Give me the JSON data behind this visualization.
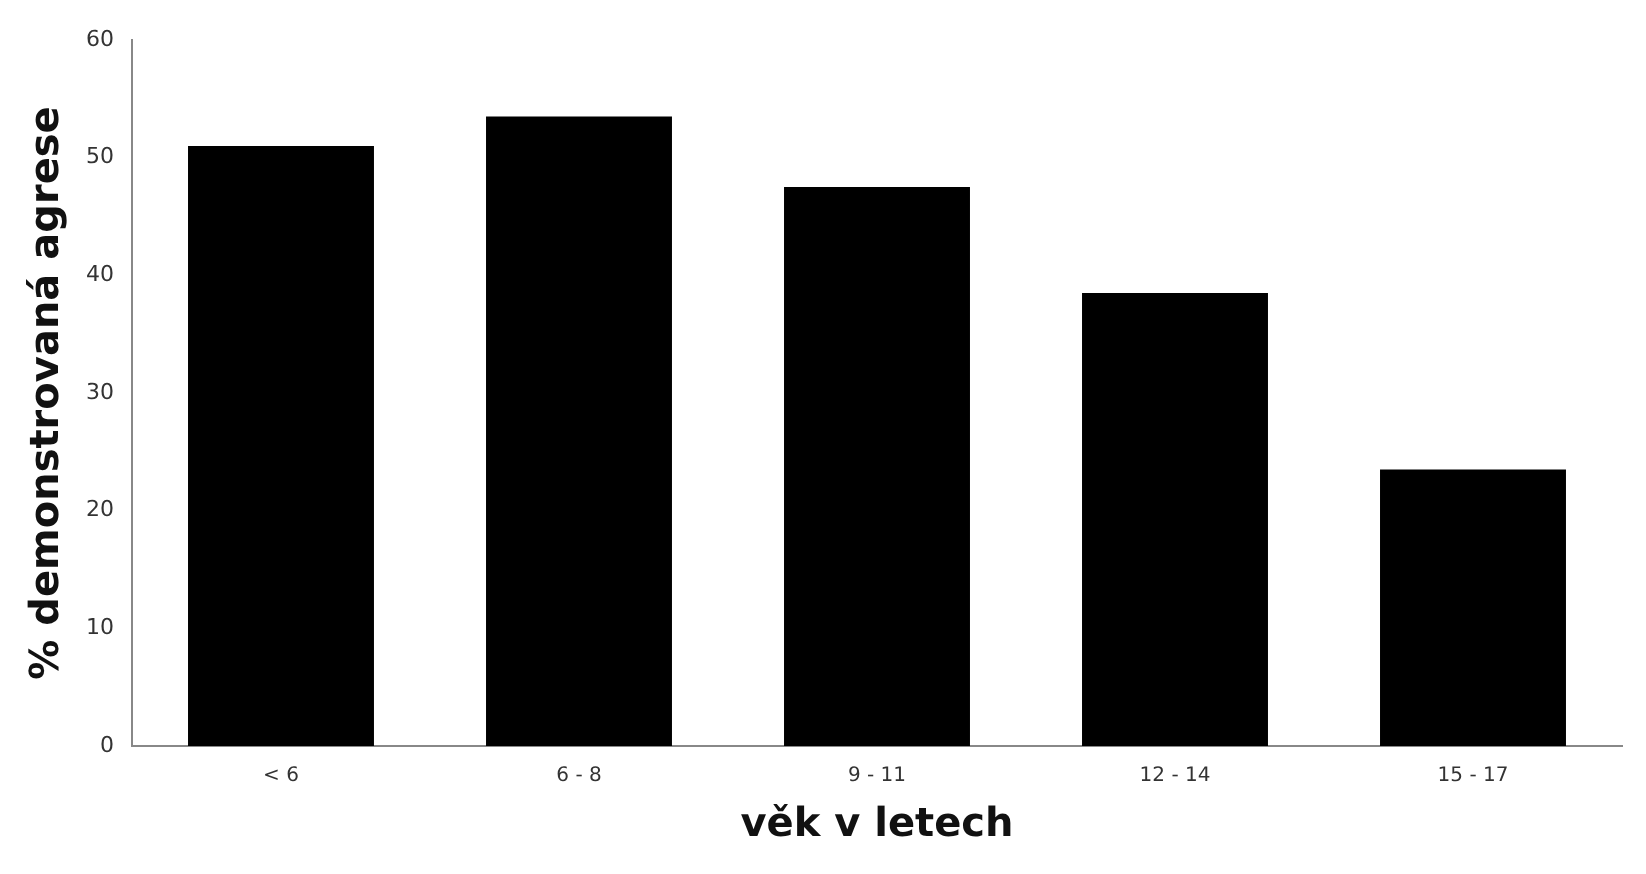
{
  "chart_data": {
    "type": "bar",
    "xlabel": "věk v letech",
    "ylabel": "% demonstrovaná agrese",
    "categories": [
      "< 6",
      "6 - 8",
      "9 - 11",
      "12 - 14",
      "15 - 17"
    ],
    "values": [
      51,
      53.5,
      47.5,
      38.5,
      23.5
    ],
    "color": "#000000",
    "ylim": [
      0,
      60
    ],
    "yticks": [
      0,
      10,
      20,
      30,
      40,
      50,
      60
    ],
    "grid": false,
    "legend": false
  }
}
